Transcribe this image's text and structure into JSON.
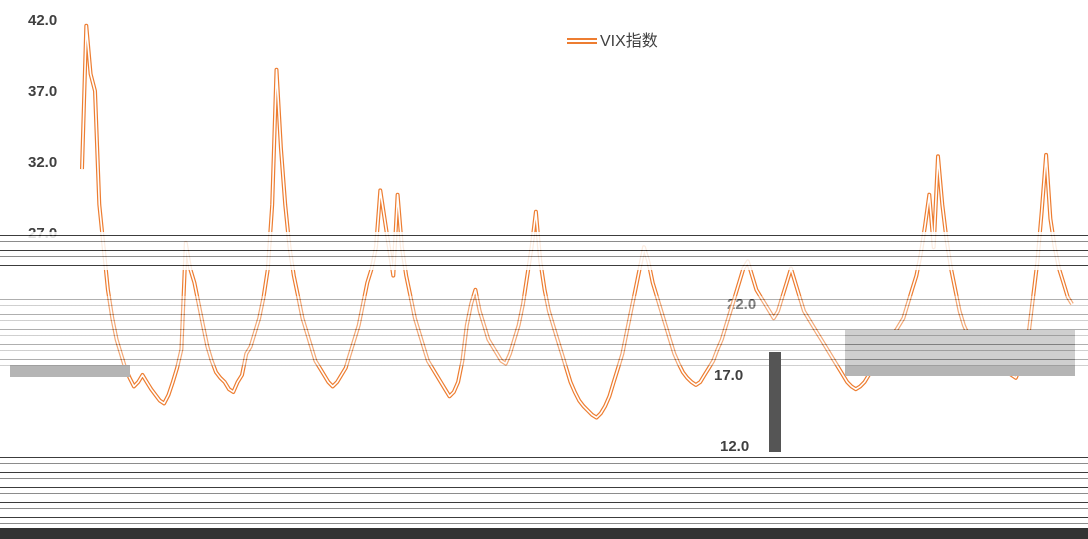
{
  "chart_data": {
    "type": "line",
    "title": "",
    "xlabel": "",
    "ylabel": "",
    "ylim": [
      12,
      42
    ],
    "y_ticks": [
      "42.0",
      "37.0",
      "32.0",
      "27.0",
      "22.0",
      "17.0",
      "12.0"
    ],
    "legend": {
      "position": "top-center",
      "entries": [
        "VIX指数"
      ]
    },
    "grid": false,
    "series": [
      {
        "name": "VIX指数",
        "color": "#ED7D31",
        "values": [
          31.5,
          41.6,
          38.2,
          37.0,
          29.0,
          26.0,
          23.0,
          21.0,
          19.5,
          18.5,
          17.5,
          16.8,
          16.2,
          16.5,
          17.0,
          16.5,
          16.0,
          15.6,
          15.2,
          15.0,
          15.6,
          16.5,
          17.5,
          18.8,
          26.3,
          24.5,
          23.5,
          22.0,
          20.5,
          19.0,
          18.0,
          17.2,
          16.8,
          16.5,
          16.0,
          15.8,
          16.5,
          17.0,
          18.5,
          19.0,
          20.0,
          21.0,
          22.5,
          24.5,
          29.0,
          38.5,
          33.0,
          29.0,
          26.0,
          24.0,
          22.5,
          21.0,
          20.0,
          19.0,
          18.0,
          17.5,
          17.0,
          16.5,
          16.2,
          16.5,
          17.0,
          17.5,
          18.5,
          19.5,
          20.5,
          22.0,
          23.5,
          24.5,
          26.0,
          30.0,
          28.0,
          26.0,
          24.0,
          29.7,
          26.0,
          24.0,
          22.5,
          21.0,
          20.0,
          19.0,
          18.0,
          17.5,
          17.0,
          16.5,
          16.0,
          15.5,
          15.8,
          16.5,
          18.0,
          20.5,
          22.0,
          23.0,
          21.5,
          20.5,
          19.5,
          19.0,
          18.5,
          18.0,
          17.8,
          18.5,
          19.5,
          20.5,
          22.0,
          24.0,
          26.0,
          28.5,
          25.0,
          23.0,
          21.5,
          20.5,
          19.5,
          18.5,
          17.5,
          16.5,
          15.8,
          15.2,
          14.8,
          14.5,
          14.2,
          14.0,
          14.3,
          14.8,
          15.5,
          16.5,
          17.5,
          18.5,
          20.0,
          21.5,
          23.0,
          24.5,
          26.0,
          25.0,
          23.5,
          22.5,
          21.5,
          20.5,
          19.5,
          18.5,
          17.8,
          17.2,
          16.8,
          16.5,
          16.3,
          16.5,
          17.0,
          17.5,
          18.0,
          18.8,
          19.5,
          20.5,
          21.5,
          22.5,
          23.5,
          24.5,
          25.0,
          24.0,
          23.0,
          22.5,
          22.0,
          21.5,
          21.0,
          21.5,
          22.5,
          23.5,
          24.5,
          23.5,
          22.5,
          21.5,
          21.0,
          20.5,
          20.0,
          19.5,
          19.0,
          18.5,
          18.0,
          17.5,
          17.0,
          16.5,
          16.2,
          16.0,
          16.2,
          16.5,
          17.0,
          17.5,
          18.0,
          18.5,
          19.0,
          19.5,
          20.0,
          20.5,
          21.0,
          22.0,
          23.0,
          24.0,
          25.5,
          27.5,
          29.7,
          26.0,
          32.4,
          29.0,
          26.5,
          24.5,
          23.0,
          21.5,
          20.5,
          19.8,
          19.2,
          18.8,
          18.5,
          18.2,
          18.0,
          17.8,
          17.5,
          17.3,
          17.2,
          17.0,
          16.8,
          17.5,
          18.5,
          20.0,
          22.5,
          25.0,
          28.5,
          32.5,
          28.0,
          26.0,
          24.5,
          23.5,
          22.5,
          22.0
        ]
      }
    ]
  }
}
